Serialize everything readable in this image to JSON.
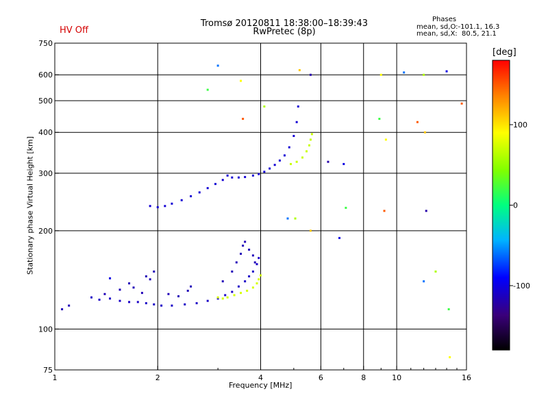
{
  "header": {
    "hv_status": "HV Off",
    "title_line1": "Tromsø 20120811 18:38:00–18:39:43",
    "title_line2": "RwPretec (8p)",
    "phases_title": "Phases",
    "phase_stat_o": "mean, sd,O:-101.1, 16.3",
    "phase_stat_x": "mean, sd,X:  80.5, 21.1"
  },
  "colorbar": {
    "unit": "[deg]",
    "range": [
      -180,
      180
    ],
    "ticks": [
      "100",
      "0",
      "-100"
    ],
    "tick_values": [
      100,
      0,
      -100
    ]
  },
  "chart_data": {
    "type": "scatter",
    "title": "Tromsø 20120811 18:38:00–18:39:43",
    "subtitle": "RwPretec (8p)",
    "xlabel": "Frequency [MHz]",
    "ylabel": "Stationary phase Virtual Height [km]",
    "x_scale": "log",
    "y_scale": "log",
    "xlim": [
      1,
      16
    ],
    "ylim": [
      75,
      750
    ],
    "x_ticks": [
      {
        "value": 1,
        "label": "1"
      },
      {
        "value": 2,
        "label": "2"
      },
      {
        "value": 4,
        "label": "4"
      },
      {
        "value": 6,
        "label": "6"
      },
      {
        "value": 8,
        "label": "8"
      },
      {
        "value": 10,
        "label": "10"
      },
      {
        "value": 16,
        "label": "16"
      }
    ],
    "x_grid": [
      2,
      4,
      6,
      8,
      10
    ],
    "x_minor": [
      3,
      5,
      7,
      9,
      11,
      12,
      13,
      14,
      15
    ],
    "y_ticks": [
      {
        "value": 75,
        "label": "75"
      },
      {
        "value": 100,
        "label": "100"
      },
      {
        "value": 200,
        "label": "200"
      },
      {
        "value": 300,
        "label": "300"
      },
      {
        "value": 400,
        "label": "400"
      },
      {
        "value": 500,
        "label": "500"
      },
      {
        "value": 600,
        "label": "600"
      },
      {
        "value": 750,
        "label": "750"
      }
    ],
    "y_grid": [
      100,
      200,
      300,
      400,
      500,
      600
    ],
    "grid": true,
    "color_by": "phase [deg]",
    "traces": [
      {
        "name": "lower ordinary trace",
        "phase": -110,
        "points": [
          [
            1.28,
            125
          ],
          [
            1.35,
            123
          ],
          [
            1.45,
            124
          ],
          [
            1.55,
            122
          ],
          [
            1.65,
            121
          ],
          [
            1.75,
            121
          ],
          [
            1.85,
            120
          ],
          [
            1.95,
            119
          ],
          [
            2.05,
            118
          ],
          [
            2.2,
            118
          ],
          [
            2.4,
            119
          ],
          [
            2.6,
            120
          ],
          [
            2.8,
            122
          ],
          [
            3.0,
            124
          ],
          [
            3.15,
            127
          ],
          [
            3.3,
            130
          ],
          [
            3.45,
            135
          ],
          [
            3.6,
            140
          ],
          [
            3.7,
            145
          ],
          [
            3.8,
            150
          ],
          [
            3.9,
            158
          ],
          [
            3.95,
            165
          ]
        ]
      },
      {
        "name": "lower ordinary scatter",
        "phase": -115,
        "points": [
          [
            1.05,
            115
          ],
          [
            1.1,
            118
          ],
          [
            1.4,
            128
          ],
          [
            1.55,
            132
          ],
          [
            1.65,
            138
          ],
          [
            1.7,
            134
          ],
          [
            1.8,
            129
          ],
          [
            1.85,
            145
          ],
          [
            1.9,
            142
          ],
          [
            1.95,
            150
          ],
          [
            2.15,
            128
          ],
          [
            2.3,
            126
          ],
          [
            2.45,
            131
          ],
          [
            2.5,
            135
          ],
          [
            3.1,
            140
          ],
          [
            3.3,
            150
          ],
          [
            3.4,
            160
          ],
          [
            3.5,
            170
          ],
          [
            3.55,
            180
          ],
          [
            3.6,
            185
          ],
          [
            3.7,
            175
          ],
          [
            3.8,
            168
          ],
          [
            3.85,
            160
          ]
        ]
      },
      {
        "name": "lower extraordinary trace",
        "phase": 75,
        "points": [
          [
            3.0,
            125
          ],
          [
            3.1,
            124
          ],
          [
            3.2,
            125
          ],
          [
            3.35,
            127
          ],
          [
            3.5,
            129
          ],
          [
            3.65,
            131
          ],
          [
            3.8,
            134
          ],
          [
            3.9,
            138
          ],
          [
            3.95,
            142
          ],
          [
            4.0,
            146
          ]
        ]
      },
      {
        "name": "upper ordinary trace",
        "phase": -105,
        "points": [
          [
            1.9,
            238
          ],
          [
            2.0,
            236
          ],
          [
            2.1,
            238
          ],
          [
            2.2,
            242
          ],
          [
            2.35,
            248
          ],
          [
            2.5,
            255
          ],
          [
            2.65,
            262
          ],
          [
            2.8,
            270
          ],
          [
            2.95,
            278
          ],
          [
            3.1,
            286
          ],
          [
            3.2,
            295
          ],
          [
            3.3,
            291
          ],
          [
            3.45,
            291
          ],
          [
            3.6,
            292
          ],
          [
            3.8,
            295
          ],
          [
            3.95,
            298
          ],
          [
            4.1,
            303
          ],
          [
            4.25,
            310
          ],
          [
            4.4,
            318
          ],
          [
            4.55,
            328
          ],
          [
            4.7,
            340
          ],
          [
            4.85,
            360
          ],
          [
            5.0,
            390
          ],
          [
            5.1,
            430
          ],
          [
            5.15,
            480
          ]
        ]
      },
      {
        "name": "upper extraordinary trace",
        "phase": 70,
        "points": [
          [
            4.9,
            320
          ],
          [
            5.1,
            325
          ],
          [
            5.3,
            335
          ],
          [
            5.45,
            350
          ],
          [
            5.55,
            365
          ],
          [
            5.6,
            380
          ],
          [
            5.65,
            395
          ]
        ]
      },
      {
        "name": "scattered echoes",
        "phase": 0,
        "points": [
          [
            1.45,
            143
          ],
          [
            2.8,
            540
          ],
          [
            3.5,
            575
          ],
          [
            3.55,
            440
          ],
          [
            3.0,
            640
          ],
          [
            4.1,
            480
          ],
          [
            5.2,
            620
          ],
          [
            5.6,
            600
          ],
          [
            7.0,
            320
          ],
          [
            7.1,
            235
          ],
          [
            9.0,
            600
          ],
          [
            9.2,
            230
          ],
          [
            10.5,
            610
          ],
          [
            12.0,
            600
          ],
          [
            12.1,
            400
          ],
          [
            12.2,
            230
          ],
          [
            14.0,
            615
          ],
          [
            14.2,
            115
          ],
          [
            14.3,
            82
          ],
          [
            15.5,
            490
          ],
          [
            4.8,
            218
          ],
          [
            5.05,
            218
          ],
          [
            5.6,
            200
          ],
          [
            6.3,
            325
          ],
          [
            6.8,
            190
          ],
          [
            8.9,
            440
          ],
          [
            9.3,
            380
          ],
          [
            11.5,
            430
          ],
          [
            12.0,
            140
          ],
          [
            13.0,
            150
          ]
        ]
      }
    ]
  }
}
